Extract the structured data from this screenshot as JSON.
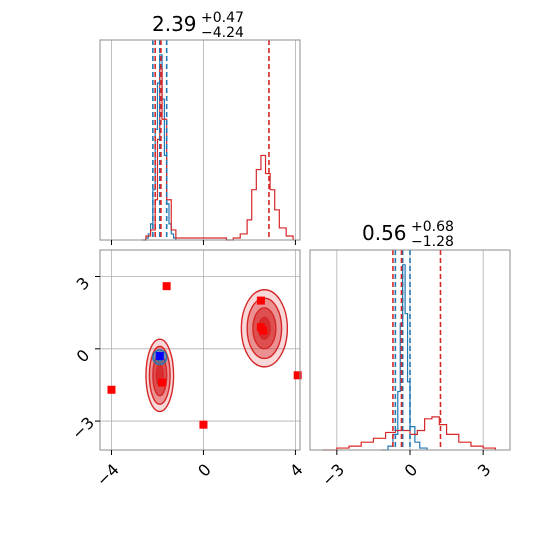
{
  "chart_data": {
    "type": "corner",
    "colors": {
      "blue": "#1f77b4",
      "red": "#d62728",
      "marker_red": "#ff0000",
      "marker_blue": "#0000ff"
    },
    "panels": [
      {
        "name": "marginal-x",
        "type": "histogram",
        "title": {
          "value": "2.39",
          "plus": "+0.47",
          "minus": "−4.24"
        },
        "xlim": [
          -4.5,
          4.2
        ],
        "grid": true,
        "series": [
          {
            "name": "",
            "color": "#1f77b4",
            "style": "step",
            "x": [
              -2.6,
              -2.5,
              -2.4,
              -2.3,
              -2.2,
              -2.1,
              -2.0,
              -1.9,
              -1.8,
              -1.7,
              -1.6,
              -1.5,
              -1.4,
              -1.3,
              -1.2
            ],
            "values": [
              0.0,
              0.01,
              0.03,
              0.08,
              0.25,
              0.55,
              0.78,
              0.92,
              0.7,
              0.42,
              0.18,
              0.08,
              0.03,
              0.01,
              0.0
            ]
          },
          {
            "name": "",
            "color": "#d62728",
            "style": "step",
            "x": [
              -2.7,
              -2.5,
              -2.3,
              -2.1,
              -2.0,
              -1.9,
              -1.8,
              -1.6,
              -1.4,
              -1.2,
              1.0,
              1.3,
              1.6,
              1.9,
              2.1,
              2.3,
              2.5,
              2.7,
              2.9,
              3.1,
              3.3,
              3.6,
              3.9
            ],
            "values": [
              0.0,
              0.02,
              0.05,
              0.2,
              0.5,
              0.85,
              0.6,
              0.2,
              0.05,
              0.01,
              0.0,
              0.01,
              0.03,
              0.1,
              0.25,
              0.35,
              0.42,
              0.33,
              0.25,
              0.15,
              0.06,
              0.02,
              0.0
            ]
          }
        ],
        "vlines": [
          {
            "x": -2.2,
            "color": "#1f77b4"
          },
          {
            "x": -1.9,
            "color": "#1f77b4"
          },
          {
            "x": -1.6,
            "color": "#1f77b4"
          },
          {
            "x": -2.1,
            "color": "#d62728"
          },
          {
            "x": -1.85,
            "color": "#d62728"
          },
          {
            "x": 2.85,
            "color": "#d62728"
          }
        ]
      },
      {
        "name": "marginal-y",
        "type": "histogram",
        "title": {
          "value": "0.56",
          "plus": "+0.68",
          "minus": "−1.28"
        },
        "xlim": [
          -4.1,
          4.1
        ],
        "xticks": [
          -3,
          0,
          3
        ],
        "xtick_labels": [
          "−3",
          "0",
          "3"
        ],
        "grid": true,
        "series": [
          {
            "name": "",
            "color": "#1f77b4",
            "style": "step",
            "x": [
              -1.2,
              -0.9,
              -0.7,
              -0.5,
              -0.4,
              -0.3,
              -0.2,
              -0.1,
              0.0,
              0.2,
              0.4,
              0.7
            ],
            "values": [
              0.0,
              0.02,
              0.08,
              0.3,
              0.65,
              0.95,
              0.7,
              0.35,
              0.12,
              0.04,
              0.01,
              0.0
            ]
          },
          {
            "name": "",
            "color": "#d62728",
            "style": "step",
            "x": [
              -3.6,
              -3.0,
              -2.5,
              -2.0,
              -1.5,
              -1.0,
              -0.6,
              -0.3,
              0.0,
              0.3,
              0.6,
              0.9,
              1.2,
              1.5,
              2.0,
              2.5,
              3.0,
              3.5
            ],
            "values": [
              0.0,
              0.01,
              0.02,
              0.04,
              0.06,
              0.09,
              0.1,
              0.1,
              0.08,
              0.1,
              0.16,
              0.17,
              0.13,
              0.08,
              0.04,
              0.02,
              0.01,
              0.0
            ]
          }
        ],
        "vlines": [
          {
            "x": -0.6,
            "color": "#1f77b4"
          },
          {
            "x": -0.3,
            "color": "#1f77b4"
          },
          {
            "x": 0.0,
            "color": "#1f77b4"
          },
          {
            "x": -0.7,
            "color": "#d62728"
          },
          {
            "x": -0.35,
            "color": "#d62728"
          },
          {
            "x": 1.25,
            "color": "#d62728"
          }
        ]
      },
      {
        "name": "joint",
        "type": "contour-scatter",
        "xlim": [
          -4.5,
          4.2
        ],
        "ylim": [
          -4.2,
          4.1
        ],
        "xticks": [
          -4,
          0,
          4
        ],
        "xtick_labels": [
          "−4",
          "0",
          "4"
        ],
        "yticks": [
          3,
          0,
          -3
        ],
        "ytick_labels": [
          "3",
          "0",
          "−3"
        ],
        "grid": true,
        "contours": [
          {
            "color": "#d62728",
            "cx": -1.9,
            "cy": -1.1,
            "levels": [
              [
                0.6,
                1.5
              ],
              [
                0.45,
                1.2
              ],
              [
                0.3,
                0.85
              ],
              [
                0.15,
                0.45
              ]
            ]
          },
          {
            "color": "#d62728",
            "cx": 2.65,
            "cy": 0.85,
            "levels": [
              [
                1.0,
                1.6
              ],
              [
                0.75,
                1.25
              ],
              [
                0.5,
                0.85
              ],
              [
                0.25,
                0.45
              ]
            ]
          },
          {
            "color": "#1f77b4",
            "cx": -1.9,
            "cy": -0.35,
            "levels": [
              [
                0.3,
                0.3
              ],
              [
                0.15,
                0.15
              ]
            ]
          }
        ],
        "markers": [
          {
            "x": -1.6,
            "y": 2.6,
            "color": "#ff0000"
          },
          {
            "x": 2.5,
            "y": 2.0,
            "color": "#ff0000"
          },
          {
            "x": 2.5,
            "y": 0.9,
            "color": "#ff0000"
          },
          {
            "x": 2.6,
            "y": 0.75,
            "color": "#ff0000"
          },
          {
            "x": -4.0,
            "y": -1.7,
            "color": "#ff0000"
          },
          {
            "x": 4.1,
            "y": -1.1,
            "color": "#ff0000"
          },
          {
            "x": 0.0,
            "y": -3.15,
            "color": "#ff0000"
          },
          {
            "x": -1.8,
            "y": -1.4,
            "color": "#ff0000"
          },
          {
            "x": -1.9,
            "y": -0.3,
            "color": "#0000ff"
          }
        ]
      }
    ]
  }
}
